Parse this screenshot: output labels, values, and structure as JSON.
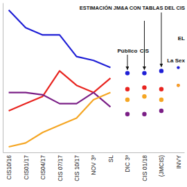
{
  "chart_data": {
    "type": "line",
    "categories": [
      "CIS10/16",
      "CIS01/17",
      "CIS04/17",
      "CIS 07/17",
      "CIS 10/17",
      "NOV 3º",
      "SL",
      "DIC 3º",
      "CIS 01/18",
      "(JMCIS)",
      "INVY"
    ],
    "annotations": [
      "ESTIMACIÓN JM&A CON TABLAS DEL CIS",
      "Público",
      "CIS",
      "EL",
      "La Sex"
    ],
    "ylim": [
      9,
      36
    ],
    "tick_labels": "x",
    "grid": false,
    "series": [
      {
        "color": "#1f1fd6",
        "values": [
          34.7,
          31.5,
          30.2,
          30.2,
          26.3,
          25.6,
          24.3,
          null,
          null,
          null,
          24.3
        ]
      },
      {
        "color": "#e8241f",
        "values": [
          16.5,
          17.8,
          19.1,
          23.7,
          21.1,
          19.8,
          22.4,
          null,
          null,
          null,
          21.1
        ]
      },
      {
        "color": "#7b1f86",
        "values": [
          19.8,
          19.8,
          19.4,
          17.8,
          17.8,
          19.8,
          17.2,
          null,
          null,
          null,
          null
        ]
      },
      {
        "color": "#f5a623",
        "values": [
          10.0,
          10.7,
          12.6,
          13.9,
          15.2,
          18.5,
          19.8,
          null,
          null,
          null,
          21.1
        ]
      },
      {
        "type": "scatter",
        "marker": "circle",
        "color": "#1f1fd6",
        "values": [
          null,
          null,
          null,
          null,
          null,
          null,
          null,
          23.3,
          23.3,
          23.7,
          null
        ]
      },
      {
        "type": "scatter",
        "marker": "circle",
        "color": "#e8241f",
        "values": [
          null,
          null,
          null,
          null,
          null,
          null,
          null,
          20.4,
          20.7,
          20.4,
          null
        ]
      },
      {
        "type": "scatter",
        "marker": "circle",
        "color": "#f5a623",
        "values": [
          null,
          null,
          null,
          null,
          null,
          null,
          null,
          18.5,
          19.1,
          18.5,
          null
        ]
      },
      {
        "type": "scatter",
        "marker": "circle",
        "color": "#7b1f86",
        "values": [
          null,
          null,
          null,
          null,
          null,
          null,
          null,
          15.9,
          15.9,
          16.5,
          null
        ]
      }
    ]
  }
}
